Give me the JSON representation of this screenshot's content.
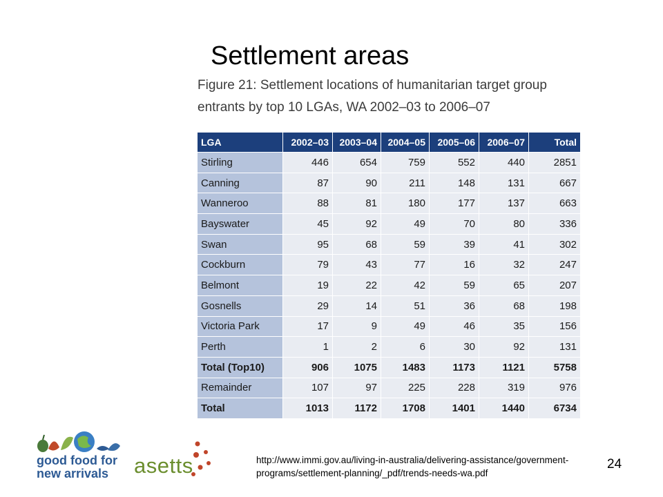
{
  "slide": {
    "title": "Settlement areas",
    "figure_caption": "Figure 21: Settlement locations of humanitarian target group entrants by top 10 LGAs, WA 2002–03 to 2006–07",
    "source_url": "http://www.immi.gov.au/living-in-australia/delivering-assistance/government-programs/settlement-planning/_pdf/trends-needs-wa.pdf",
    "slide_number": "24"
  },
  "table": {
    "headers": [
      "LGA",
      "2002–03",
      "2003–04",
      "2004–05",
      "2005–06",
      "2006–07",
      "Total"
    ],
    "rows": [
      {
        "lga": "Stirling",
        "values": [
          "446",
          "654",
          "759",
          "552",
          "440",
          "2851"
        ]
      },
      {
        "lga": "Canning",
        "values": [
          "87",
          "90",
          "211",
          "148",
          "131",
          "667"
        ]
      },
      {
        "lga": "Wanneroo",
        "values": [
          "88",
          "81",
          "180",
          "177",
          "137",
          "663"
        ]
      },
      {
        "lga": "Bayswater",
        "values": [
          "45",
          "92",
          "49",
          "70",
          "80",
          "336"
        ]
      },
      {
        "lga": "Swan",
        "values": [
          "95",
          "68",
          "59",
          "39",
          "41",
          "302"
        ]
      },
      {
        "lga": "Cockburn",
        "values": [
          "79",
          "43",
          "77",
          "16",
          "32",
          "247"
        ]
      },
      {
        "lga": "Belmont",
        "values": [
          "19",
          "22",
          "42",
          "59",
          "65",
          "207"
        ]
      },
      {
        "lga": "Gosnells",
        "values": [
          "29",
          "14",
          "51",
          "36",
          "68",
          "198"
        ]
      },
      {
        "lga": "Victoria Park",
        "values": [
          "17",
          "9",
          "49",
          "46",
          "35",
          "156"
        ]
      },
      {
        "lga": "Perth",
        "values": [
          "1",
          "2",
          "6",
          "30",
          "92",
          "131"
        ]
      },
      {
        "lga": "Total (Top10)",
        "values": [
          "906",
          "1075",
          "1483",
          "1173",
          "1121",
          "5758"
        ],
        "bold": true
      },
      {
        "lga": "Remainder",
        "values": [
          "107",
          "97",
          "225",
          "228",
          "319",
          "976"
        ]
      },
      {
        "lga": "Total",
        "values": [
          "1013",
          "1172",
          "1708",
          "1401",
          "1440",
          "6734"
        ],
        "bold": true
      }
    ]
  },
  "logos": {
    "good_food": {
      "line1": "good food for",
      "line2": "new arrivals"
    },
    "asetts": {
      "text": "asetts"
    }
  },
  "colors": {
    "header_bg": "#1c3f7c",
    "label_cell_bg": "#b5c3dc",
    "value_cell_bg": "#e9ecf2",
    "good_food_text": "#2d5a94",
    "asetts_text": "#6b8e2e",
    "asetts_dots": "#c0452a"
  }
}
